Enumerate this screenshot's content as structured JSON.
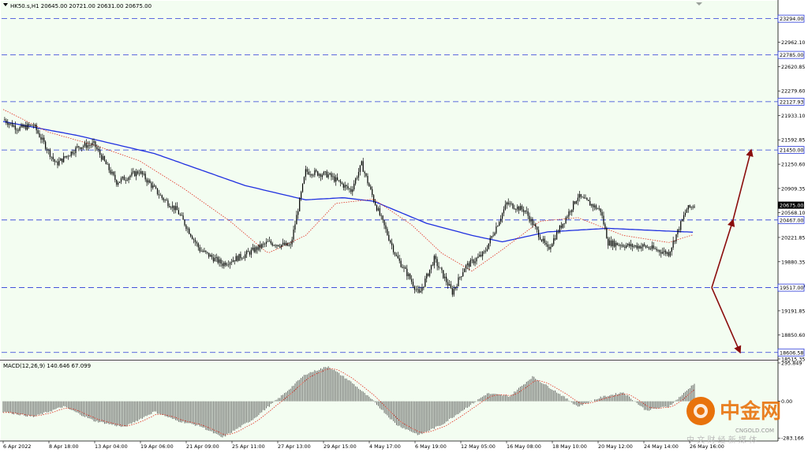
{
  "header": {
    "symbol_info": "HK50.s,H1  20645.00 20721.00 20631.00 20675.00",
    "macd_info": "MACD(12,26,9) 140.646 67.099"
  },
  "colors": {
    "background": "#f3fdf1",
    "candle": "#000000",
    "ma_fast": "#e03020",
    "ma_slow": "#1f2fe0",
    "level_line": "#2a3ad8",
    "arrow": "#8b0d0d",
    "price_tag_bg": "#ffffff",
    "current_tag_bg": "#000000"
  },
  "watermark": {
    "brand": "中金网",
    "url": "CNGOLD.COM",
    "tagline": "中 文 财 经 新 媒 体"
  },
  "chart_data": [
    {
      "type": "candlestick",
      "title": "HK50.s,H1",
      "ylim": [
        18515.35,
        23545
      ],
      "y_ticks": [
        "22962.10",
        "22620.85",
        "22279.60",
        "21933.10",
        "21592.85",
        "21250.60",
        "20909.35",
        "20568.10",
        "20221.85",
        "19880.35",
        "19539.10",
        "19191.85",
        "18850.60",
        "18515.35"
      ],
      "x_ticks": [
        "6 Apr 2022",
        "8 Apr 18:00",
        "13 Apr 04:00",
        "19 Apr 06:00",
        "21 Apr 09:00",
        "25 Apr 11:00",
        "27 Apr 13:00",
        "29 Apr 15:00",
        "4 May 17:00",
        "6 May 19:00",
        "12 May 05:00",
        "16 May 08:00",
        "18 May 10:00",
        "20 May 12:00",
        "24 May 14:00",
        "26 May 16:00"
      ],
      "ohlc_last": {
        "open": 20645.0,
        "high": 20721.0,
        "low": 20631.0,
        "close": 20675.0
      },
      "current_price": "20675.00",
      "horizontal_levels": [
        "23294.00",
        "22785.00",
        "22127.93",
        "21450.00",
        "20467.00",
        "19517.00",
        "18606.58"
      ],
      "ma_slow_last": 20295,
      "ma_fast_last": 20265,
      "price_path_keypoints": [
        {
          "t": 0,
          "price": 21880
        },
        {
          "t": 10,
          "price": 21750
        },
        {
          "t": 20,
          "price": 21800
        },
        {
          "t": 35,
          "price": 21250
        },
        {
          "t": 50,
          "price": 21500
        },
        {
          "t": 60,
          "price": 21530
        },
        {
          "t": 75,
          "price": 21000
        },
        {
          "t": 90,
          "price": 21150
        },
        {
          "t": 105,
          "price": 20780
        },
        {
          "t": 115,
          "price": 20600
        },
        {
          "t": 130,
          "price": 20050
        },
        {
          "t": 145,
          "price": 19850
        },
        {
          "t": 160,
          "price": 19980
        },
        {
          "t": 175,
          "price": 20150
        },
        {
          "t": 190,
          "price": 20100
        },
        {
          "t": 200,
          "price": 21150
        },
        {
          "t": 215,
          "price": 21100
        },
        {
          "t": 230,
          "price": 20880
        },
        {
          "t": 237,
          "price": 21250
        },
        {
          "t": 245,
          "price": 20750
        },
        {
          "t": 260,
          "price": 19950
        },
        {
          "t": 268,
          "price": 19680
        },
        {
          "t": 275,
          "price": 19420
        },
        {
          "t": 285,
          "price": 19920
        },
        {
          "t": 297,
          "price": 19450
        },
        {
          "t": 305,
          "price": 19800
        },
        {
          "t": 318,
          "price": 20000
        },
        {
          "t": 333,
          "price": 20700
        },
        {
          "t": 345,
          "price": 20600
        },
        {
          "t": 360,
          "price": 20050
        },
        {
          "t": 380,
          "price": 20800
        },
        {
          "t": 395,
          "price": 20600
        },
        {
          "t": 400,
          "price": 20150
        },
        {
          "t": 415,
          "price": 20100
        },
        {
          "t": 423,
          "price": 20100
        },
        {
          "t": 440,
          "price": 20000
        },
        {
          "t": 452,
          "price": 20620
        },
        {
          "t": 457,
          "price": 20675
        }
      ],
      "ma_slow_keypoints": [
        {
          "t": 0,
          "price": 21850
        },
        {
          "t": 50,
          "price": 21650
        },
        {
          "t": 100,
          "price": 21400
        },
        {
          "t": 160,
          "price": 20950
        },
        {
          "t": 200,
          "price": 20750
        },
        {
          "t": 225,
          "price": 20780
        },
        {
          "t": 245,
          "price": 20730
        },
        {
          "t": 280,
          "price": 20420
        },
        {
          "t": 310,
          "price": 20250
        },
        {
          "t": 330,
          "price": 20160
        },
        {
          "t": 360,
          "price": 20300
        },
        {
          "t": 400,
          "price": 20350
        },
        {
          "t": 430,
          "price": 20320
        },
        {
          "t": 457,
          "price": 20295
        }
      ],
      "ma_fast_keypoints": [
        {
          "t": 0,
          "price": 22020
        },
        {
          "t": 30,
          "price": 21700
        },
        {
          "t": 60,
          "price": 21520
        },
        {
          "t": 90,
          "price": 21300
        },
        {
          "t": 120,
          "price": 20900
        },
        {
          "t": 150,
          "price": 20450
        },
        {
          "t": 175,
          "price": 20000
        },
        {
          "t": 200,
          "price": 20250
        },
        {
          "t": 220,
          "price": 20700
        },
        {
          "t": 245,
          "price": 20760
        },
        {
          "t": 270,
          "price": 20400
        },
        {
          "t": 290,
          "price": 20000
        },
        {
          "t": 310,
          "price": 19750
        },
        {
          "t": 330,
          "price": 20050
        },
        {
          "t": 355,
          "price": 20450
        },
        {
          "t": 380,
          "price": 20500
        },
        {
          "t": 410,
          "price": 20250
        },
        {
          "t": 440,
          "price": 20150
        },
        {
          "t": 457,
          "price": 20265
        }
      ],
      "projection": {
        "origin": {
          "t": 457,
          "price": 19517
        },
        "up_targets": [
          20467,
          21450
        ],
        "down_target": 18606.58
      }
    },
    {
      "type": "bar",
      "title": "MACD(12,26,9)",
      "series": [
        {
          "name": "MACD",
          "last": 140.646
        },
        {
          "name": "Signal",
          "last": 67.099
        }
      ],
      "ylim": [
        -300,
        295.849
      ],
      "y_ticks": [
        "295.849",
        "0.00",
        "-283.166"
      ],
      "macd_keypoints": [
        {
          "t": 0,
          "v": -80
        },
        {
          "t": 20,
          "v": -120
        },
        {
          "t": 40,
          "v": -40
        },
        {
          "t": 60,
          "v": -150
        },
        {
          "t": 80,
          "v": -200
        },
        {
          "t": 100,
          "v": -80
        },
        {
          "t": 115,
          "v": -150
        },
        {
          "t": 130,
          "v": -190
        },
        {
          "t": 145,
          "v": -280
        },
        {
          "t": 165,
          "v": -140
        },
        {
          "t": 185,
          "v": 50
        },
        {
          "t": 200,
          "v": 210
        },
        {
          "t": 215,
          "v": 270
        },
        {
          "t": 230,
          "v": 150
        },
        {
          "t": 245,
          "v": 0
        },
        {
          "t": 260,
          "v": -180
        },
        {
          "t": 275,
          "v": -260
        },
        {
          "t": 290,
          "v": -180
        },
        {
          "t": 305,
          "v": -60
        },
        {
          "t": 320,
          "v": 60
        },
        {
          "t": 335,
          "v": 40
        },
        {
          "t": 350,
          "v": 190
        },
        {
          "t": 365,
          "v": 80
        },
        {
          "t": 380,
          "v": -40
        },
        {
          "t": 395,
          "v": 30
        },
        {
          "t": 410,
          "v": 70
        },
        {
          "t": 425,
          "v": -70
        },
        {
          "t": 440,
          "v": -40
        },
        {
          "t": 450,
          "v": 60
        },
        {
          "t": 457,
          "v": 140.646
        }
      ]
    }
  ]
}
